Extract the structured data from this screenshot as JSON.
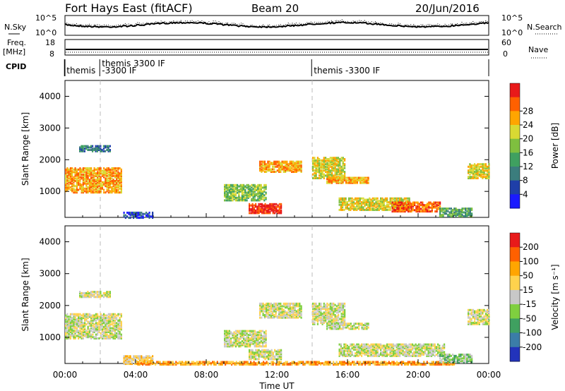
{
  "header": {
    "station": "Fort Hays East (fitACF)",
    "beam": "Beam 20",
    "date": "20/Jun/2016"
  },
  "noise_panel": {
    "left_label": "N.Sky",
    "left_ticks": [
      "10^5",
      "10^0"
    ],
    "right_ticks": [
      "10^5",
      "10^0"
    ],
    "right_label": "N.Search"
  },
  "freq_panel": {
    "left_label_1": "Freq.",
    "left_label_2": "[MHz]",
    "left_ticks": [
      "18",
      "8"
    ],
    "right_ticks": [
      "60",
      "0"
    ],
    "right_label": "Nave"
  },
  "cpid_panel": {
    "label": "CPID",
    "entries": [
      {
        "text": "themis",
        "hour": 0.05
      },
      {
        "text": "themis 3300 IF",
        "hour": 2.05
      },
      {
        "text": "-3300 IF",
        "hour": 2.05
      },
      {
        "text": "themis -3300 IF",
        "hour": 14.05
      }
    ]
  },
  "chart_data": [
    {
      "type": "heatmap",
      "name": "Power",
      "ylabel": "Slant Range [km]",
      "ylim": [
        180,
        4500
      ],
      "yticks": [
        "1000",
        "2000",
        "3000",
        "4000"
      ],
      "colorbar_label": "Power [dB]",
      "colorbar_ticks": [
        "4",
        "8",
        "12",
        "16",
        "20",
        "24",
        "28"
      ],
      "colors": [
        "#1a1aff",
        "#1f3fa8",
        "#3b7d7d",
        "#3fa060",
        "#7fbf3f",
        "#d9d933",
        "#ffa500",
        "#ff6000",
        "#e81a1a"
      ],
      "regions": [
        {
          "t0": 0.0,
          "t1": 3.2,
          "r0": 1000,
          "r1": 1800,
          "level": 6
        },
        {
          "t0": 0.8,
          "t1": 2.6,
          "r0": 2300,
          "r1": 2500,
          "level": 2
        },
        {
          "t0": 3.3,
          "t1": 5.0,
          "r0": 200,
          "r1": 400,
          "level": 1
        },
        {
          "t0": 10.4,
          "t1": 12.2,
          "r0": 350,
          "r1": 650,
          "level": 8
        },
        {
          "t0": 9.0,
          "t1": 11.4,
          "r0": 750,
          "r1": 1250,
          "level": 4
        },
        {
          "t0": 11.0,
          "t1": 13.4,
          "r0": 1650,
          "r1": 2000,
          "level": 6
        },
        {
          "t0": 14.0,
          "t1": 15.8,
          "r0": 1450,
          "r1": 2100,
          "level": 5
        },
        {
          "t0": 14.8,
          "t1": 17.2,
          "r0": 1300,
          "r1": 1500,
          "level": 6
        },
        {
          "t0": 15.5,
          "t1": 19.5,
          "r0": 450,
          "r1": 850,
          "level": 5
        },
        {
          "t0": 18.5,
          "t1": 21.2,
          "r0": 400,
          "r1": 700,
          "level": 7
        },
        {
          "t0": 21.2,
          "t1": 23.0,
          "r0": 250,
          "r1": 500,
          "level": 3
        },
        {
          "t0": 22.8,
          "t1": 24.0,
          "r0": 1450,
          "r1": 1900,
          "level": 5
        }
      ]
    },
    {
      "type": "heatmap",
      "name": "Velocity",
      "ylabel": "Slant Range [km]",
      "ylim": [
        180,
        4500
      ],
      "yticks": [
        "1000",
        "2000",
        "3000",
        "4000"
      ],
      "colorbar_label": "Velocity [m s⁻¹]",
      "colorbar_ticks": [
        "200",
        "100",
        "50",
        "15",
        "-15",
        "-50",
        "-100",
        "-200"
      ],
      "colors": [
        "#2233bb",
        "#3b7da8",
        "#3fa060",
        "#7fcf3f",
        "#c8c8c8",
        "#ffd24d",
        "#ffa500",
        "#ff6000",
        "#e81a1a"
      ],
      "regions": [
        {
          "t0": 0.0,
          "t1": 3.2,
          "r0": 1000,
          "r1": 1800,
          "level": 4
        },
        {
          "t0": 0.8,
          "t1": 2.6,
          "r0": 2300,
          "r1": 2500,
          "level": 4
        },
        {
          "t0": 3.3,
          "t1": 5.0,
          "r0": 200,
          "r1": 450,
          "level": 5
        },
        {
          "t0": 4.0,
          "t1": 22.0,
          "r0": 180,
          "r1": 300,
          "level": 6
        },
        {
          "t0": 9.0,
          "t1": 11.4,
          "r0": 750,
          "r1": 1250,
          "level": 4
        },
        {
          "t0": 10.4,
          "t1": 12.2,
          "r0": 350,
          "r1": 650,
          "level": 4
        },
        {
          "t0": 11.0,
          "t1": 13.4,
          "r0": 1650,
          "r1": 2100,
          "level": 4
        },
        {
          "t0": 14.0,
          "t1": 15.8,
          "r0": 1450,
          "r1": 2100,
          "level": 4
        },
        {
          "t0": 14.8,
          "t1": 17.2,
          "r0": 1300,
          "r1": 1500,
          "level": 4
        },
        {
          "t0": 15.5,
          "t1": 21.5,
          "r0": 450,
          "r1": 850,
          "level": 4
        },
        {
          "t0": 21.2,
          "t1": 23.0,
          "r0": 250,
          "r1": 500,
          "level": 3
        },
        {
          "t0": 22.8,
          "t1": 24.0,
          "r0": 1450,
          "r1": 1900,
          "level": 4
        }
      ]
    }
  ],
  "xaxis": {
    "label": "Time UT",
    "ticks": [
      "00:00",
      "04:00",
      "08:00",
      "12:00",
      "16:00",
      "20:00",
      "00:00"
    ],
    "range_hours": [
      0,
      24
    ],
    "marker_hours": [
      2.0,
      14.0
    ]
  }
}
